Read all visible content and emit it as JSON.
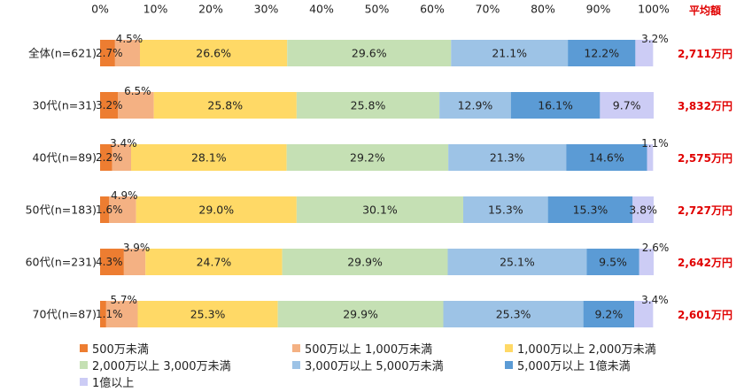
{
  "chart_data": {
    "type": "bar",
    "orientation": "horizontal",
    "stacked": true,
    "percent_stacked": true,
    "x_ticks": [
      "0%",
      "10%",
      "20%",
      "30%",
      "40%",
      "50%",
      "60%",
      "70%",
      "80%",
      "90%",
      "100%"
    ],
    "xlim": [
      0,
      100
    ],
    "axis_position": "top",
    "grid": false,
    "avg_header": "平均額",
    "categories": [
      "全体(n=621)",
      "30代(n=31)",
      "40代(n=89)",
      "50代(n=183)",
      "60代(n=231)",
      "70代(n=87)"
    ],
    "averages": [
      "2,711万円",
      "3,832万円",
      "2,575万円",
      "2,727万円",
      "2,642万円",
      "2,601万円"
    ],
    "series": [
      {
        "name": "500万未満",
        "color": "#ED7D31",
        "values": [
          2.7,
          3.2,
          2.2,
          1.6,
          4.3,
          1.1
        ],
        "labels": [
          "2.7%",
          "3.2%",
          "2.2%",
          "1.6%",
          "4.3%",
          "1.1%"
        ]
      },
      {
        "name": "500万以上 1,000万未満",
        "color": "#F4B183",
        "values": [
          4.5,
          6.5,
          3.4,
          4.9,
          3.9,
          5.7
        ],
        "labels": [
          "4.5%",
          "6.5%",
          "3.4%",
          "4.9%",
          "3.9%",
          "5.7%"
        ]
      },
      {
        "name": "1,000万以上 2,000万未満",
        "color": "#FFD966",
        "values": [
          26.6,
          25.8,
          28.1,
          29.0,
          24.7,
          25.3
        ],
        "labels": [
          "26.6%",
          "25.8%",
          "28.1%",
          "29.0%",
          "24.7%",
          "25.3%"
        ]
      },
      {
        "name": "2,000万以上 3,000万未満",
        "color": "#C5E0B4",
        "values": [
          29.6,
          25.8,
          29.2,
          30.1,
          29.9,
          29.9
        ],
        "labels": [
          "29.6%",
          "25.8%",
          "29.2%",
          "30.1%",
          "29.9%",
          "29.9%"
        ]
      },
      {
        "name": "3,000万以上 5,000万未満",
        "color": "#9DC3E6",
        "values": [
          21.1,
          12.9,
          21.3,
          15.3,
          25.1,
          25.3
        ],
        "labels": [
          "21.1%",
          "12.9%",
          "21.3%",
          "15.3%",
          "25.1%",
          "25.3%"
        ]
      },
      {
        "name": "5,000万以上 1億未満",
        "color": "#5B9BD5",
        "values": [
          12.2,
          16.1,
          14.6,
          15.3,
          9.5,
          9.2
        ],
        "labels": [
          "12.2%",
          "16.1%",
          "14.6%",
          "15.3%",
          "9.5%",
          "9.2%"
        ]
      },
      {
        "name": "1億以上",
        "color": "#CCCCF5",
        "values": [
          3.2,
          9.7,
          1.1,
          3.8,
          2.6,
          3.4
        ],
        "labels": [
          "3.2%",
          "9.7%",
          "1.1%",
          "3.8%",
          "2.6%",
          "3.4%"
        ]
      }
    ]
  }
}
